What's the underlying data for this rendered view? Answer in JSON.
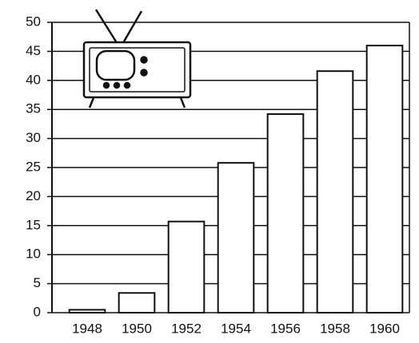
{
  "chart_data": {
    "type": "bar",
    "categories": [
      "1948",
      "1950",
      "1952",
      "1954",
      "1956",
      "1958",
      "1960"
    ],
    "values": [
      0.5,
      3.4,
      15.7,
      25.8,
      34.2,
      41.6,
      46
    ],
    "color": "#ffffff",
    "ylim": [
      0,
      50
    ],
    "yticks": [
      0,
      5,
      10,
      15,
      20,
      25,
      30,
      35,
      40,
      45,
      50
    ],
    "grid": true
  }
}
